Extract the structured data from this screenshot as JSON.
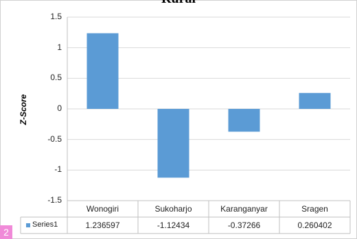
{
  "chart_data": {
    "type": "bar",
    "title": "Rural",
    "ylabel": "Z-Score",
    "xlabel": "",
    "categories": [
      "Wonogiri",
      "Sukoharjo",
      "Karanganyar",
      "Sragen"
    ],
    "series": [
      {
        "name": "Series1",
        "values": [
          1.236597,
          -1.12434,
          -0.37266,
          0.260402
        ],
        "labels": [
          "1.236597",
          "-1.12434",
          "-0.37266",
          "0.260402"
        ]
      }
    ],
    "ylim": [
      -1.5,
      1.5
    ],
    "yticks": [
      "1.5",
      "1",
      "0.5",
      "0",
      "-0.5",
      "-1",
      "-1.5"
    ],
    "grid": true,
    "data_table": true,
    "color": "#5b9bd5"
  },
  "page_badge": "2"
}
